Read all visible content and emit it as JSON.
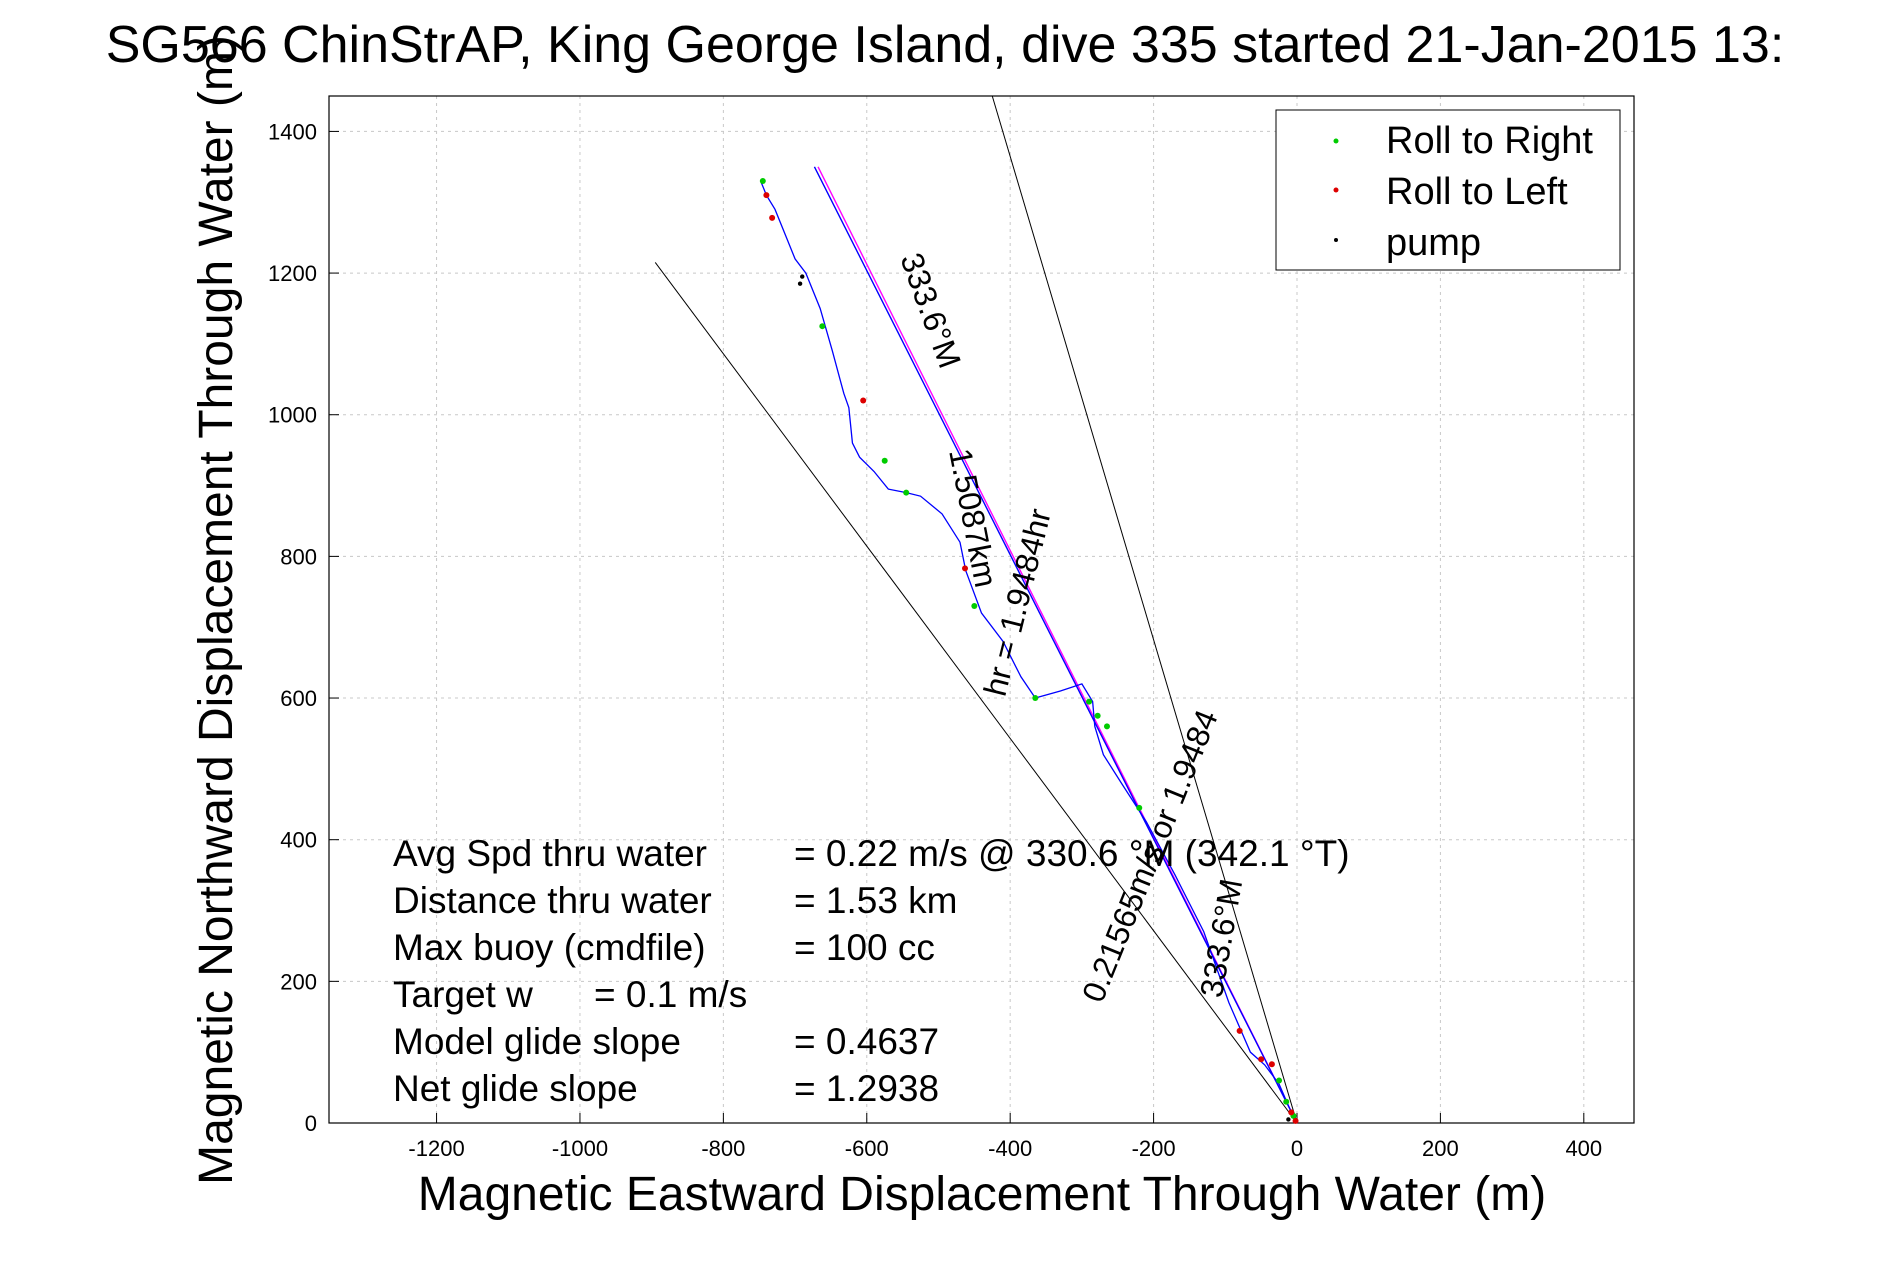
{
  "chart_data": {
    "type": "line",
    "title": "SG566 ChinStrAP, King George Island, dive 335 started 21-Jan-2015 13:",
    "xlabel": "Magnetic Eastward Displacement Through Water (m)",
    "ylabel": "Magnetic Northward Displacement Through Water (m)",
    "xlim": [
      -1350,
      470
    ],
    "ylim": [
      0,
      1450
    ],
    "xticks": [
      -1200,
      -1000,
      -800,
      -600,
      -400,
      -200,
      0,
      200,
      400
    ],
    "yticks": [
      0,
      200,
      400,
      600,
      800,
      1000,
      1200,
      1400
    ],
    "grid": true,
    "legend_position": "top-right",
    "legend": [
      {
        "name": "Roll to Right",
        "color": "#00cc00"
      },
      {
        "name": "Roll to Left",
        "color": "#dd0000"
      },
      {
        "name": "pump",
        "color": "#000000"
      }
    ],
    "track": {
      "name": "glider track",
      "color": "#0000ff",
      "x": [
        0,
        -10,
        -25,
        -45,
        -65,
        -95,
        -130,
        -170,
        -210,
        -245,
        -270,
        -282,
        -285,
        -300,
        -330,
        -365,
        -385,
        -410,
        -440,
        -462,
        -470,
        -495,
        -525,
        -545,
        -570,
        -590,
        -610,
        -620,
        -625,
        -632,
        -648,
        -665,
        -685,
        -700,
        -712,
        -728,
        -740,
        -748
      ],
      "y": [
        0,
        20,
        55,
        82,
        100,
        170,
        270,
        350,
        425,
        480,
        520,
        560,
        595,
        620,
        610,
        600,
        630,
        680,
        720,
        780,
        820,
        860,
        885,
        890,
        895,
        920,
        940,
        960,
        1010,
        1030,
        1090,
        1150,
        1200,
        1220,
        1250,
        1290,
        1310,
        1330
      ]
    },
    "roll_right_points": {
      "x": [
        -5,
        -15,
        -25,
        -220,
        -265,
        -278,
        -290,
        -365,
        -450,
        -545,
        -575,
        -662,
        -745
      ],
      "y": [
        10,
        30,
        60,
        445,
        560,
        575,
        595,
        600,
        730,
        890,
        935,
        1125,
        1330
      ]
    },
    "roll_left_points": {
      "x": [
        -2,
        -8,
        -35,
        -50,
        -80,
        -463,
        -605,
        -732,
        -740
      ],
      "y": [
        3,
        15,
        83,
        90,
        130,
        783,
        1020,
        1278,
        1310
      ]
    },
    "pump_points": {
      "x": [
        -12,
        -690,
        -693
      ],
      "y": [
        5,
        1195,
        1185
      ]
    },
    "reference_lines": [
      {
        "name": "heading 333.6 M",
        "color": "#ff00ff",
        "x": [
          0,
          -668
        ],
        "y": [
          0,
          1350
        ]
      },
      {
        "name": "heading 330.6 M",
        "color": "#0000ff",
        "x": [
          0,
          -673
        ],
        "y": [
          0,
          1350
        ]
      },
      {
        "name": "upper bound line",
        "color": "#000000",
        "x": [
          0,
          -425
        ],
        "y": [
          0,
          1450
        ]
      },
      {
        "name": "lower bound line",
        "color": "#000000",
        "x": [
          0,
          -895
        ],
        "y": [
          0,
          1215
        ]
      }
    ],
    "annotations": {
      "heading_upper": "333.6°M",
      "distance": "1.5087km",
      "elapsed": "hr = 1.9484hr",
      "speed": "0.21565m/s or 1.9484",
      "heading_lower": "333.6°M"
    },
    "stats": [
      {
        "label": "Avg Spd thru water",
        "value": "=  0.22 m/s @ 330.6 °M (342.1 °T)"
      },
      {
        "label": "Distance thru water",
        "value": "=  1.53 km"
      },
      {
        "label": "Max buoy (cmdfile)",
        "value": "= 100 cc"
      },
      {
        "label": "Target w",
        "value": "= 0.1 m/s"
      },
      {
        "label": "Model glide slope",
        "value": "= 0.4637"
      },
      {
        "label": "Net glide slope",
        "value": "= 1.2938"
      }
    ]
  }
}
